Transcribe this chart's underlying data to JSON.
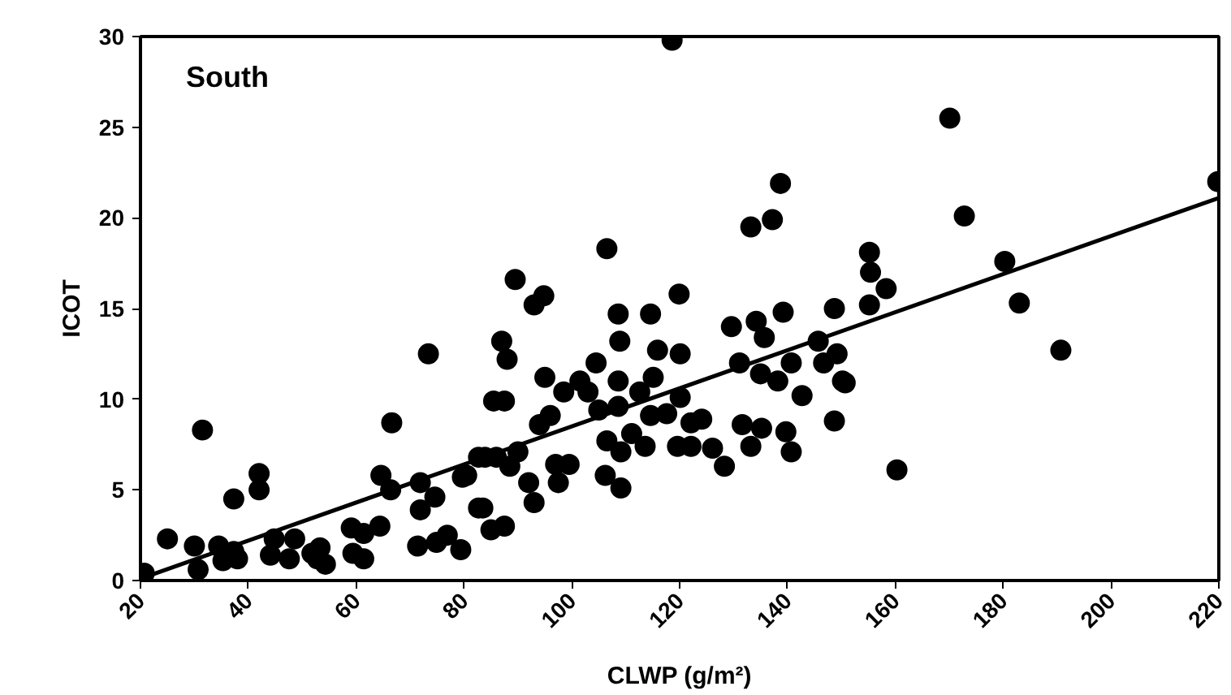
{
  "chart_data": {
    "type": "scatter",
    "title": "South",
    "xlabel": "CLWP (g/m²)",
    "ylabel": "ICOT",
    "xlim": [
      20,
      220
    ],
    "xticks": [
      20,
      40,
      60,
      80,
      100,
      120,
      140,
      160,
      180,
      200,
      220
    ],
    "ylim": [
      0,
      30
    ],
    "yticks": [
      0,
      5,
      10,
      15,
      20,
      25,
      30
    ],
    "grid": false,
    "series": [
      {
        "marker": "circle",
        "color": "#000000",
        "x": [
          20.7,
          25.0,
          30.0,
          30.7,
          31.5,
          34.5,
          35.3,
          37.3,
          37.3,
          38.0,
          42.0,
          42.0,
          44.1,
          44.8,
          47.6,
          48.6,
          51.8,
          52.8,
          53.3,
          54.3,
          59.1,
          59.4,
          61.4,
          61.4,
          64.4,
          64.6,
          66.4,
          66.6,
          71.4,
          71.9,
          71.9,
          73.4,
          74.6,
          74.9,
          76.9,
          79.4,
          79.7,
          82.7,
          82.7,
          118.6,
          80.5,
          83.9,
          83.5,
          85.0,
          87.5,
          85.5,
          87.5,
          87.0,
          88.0,
          89.5,
          86.0,
          88.5,
          90.0,
          92.0,
          93.0,
          94.0,
          95.0,
          93.0,
          94.8,
          96.0,
          97.0,
          98.5,
          97.5,
          99.5,
          101.5,
          103.0,
          104.5,
          106.5,
          105.0,
          106.5,
          106.2,
          108.6,
          108.6,
          108.9,
          108.6,
          109.1,
          109.1,
          111.1,
          112.6,
          113.6,
          114.6,
          115.1,
          115.9,
          114.6,
          117.6,
          119.6,
          120.1,
          119.9,
          120.1,
          122.1,
          122.1,
          124.1,
          126.1,
          128.3,
          129.6,
          131.1,
          131.6,
          133.2,
          133.2,
          134.2,
          135.0,
          135.2,
          135.7,
          137.2,
          138.7,
          138.2,
          139.2,
          139.7,
          140.7,
          140.7,
          142.7,
          145.7,
          148.7,
          146.7,
          149.2,
          148.7,
          150.2,
          150.7,
          155.2,
          155.4,
          158.3,
          155.2,
          160.3,
          170.1,
          172.8,
          180.3,
          183.0,
          190.7,
          219.8
        ],
        "values": [
          0.4,
          2.3,
          1.9,
          0.6,
          8.3,
          1.9,
          1.1,
          1.6,
          4.5,
          1.2,
          5.9,
          5.0,
          1.4,
          2.3,
          1.2,
          2.3,
          1.5,
          1.2,
          1.8,
          0.9,
          2.9,
          1.5,
          1.2,
          2.6,
          3.0,
          5.8,
          5.0,
          8.7,
          1.9,
          5.4,
          3.9,
          12.5,
          4.6,
          2.1,
          2.5,
          1.7,
          5.7,
          6.8,
          4.0,
          29.8,
          5.8,
          6.8,
          4.0,
          2.8,
          3.0,
          9.9,
          9.9,
          13.2,
          12.2,
          16.6,
          6.8,
          6.3,
          7.1,
          5.4,
          4.3,
          8.6,
          11.2,
          15.2,
          15.7,
          9.1,
          6.4,
          10.4,
          5.4,
          6.4,
          11.0,
          10.4,
          12.0,
          18.3,
          9.4,
          7.7,
          5.8,
          11.0,
          14.7,
          13.2,
          9.6,
          5.1,
          7.1,
          8.1,
          10.4,
          7.4,
          14.7,
          11.2,
          12.7,
          9.1,
          9.2,
          7.4,
          12.5,
          15.8,
          10.1,
          7.4,
          8.7,
          8.9,
          7.3,
          6.3,
          14.0,
          12.0,
          8.6,
          19.5,
          7.4,
          14.3,
          11.4,
          8.4,
          13.4,
          19.9,
          21.9,
          11.0,
          14.8,
          8.2,
          7.1,
          12.0,
          10.2,
          13.2,
          15.0,
          12.0,
          12.5,
          8.8,
          11.0,
          10.9,
          18.1,
          17.0,
          16.1,
          15.2,
          6.1,
          25.5,
          20.1,
          17.6,
          15.3,
          12.7,
          22.0
        ]
      },
      {
        "type": "line",
        "marker": "none",
        "color": "#000000",
        "x": [
          20,
          220
        ],
        "values": [
          0.1,
          21.1
        ]
      }
    ]
  }
}
